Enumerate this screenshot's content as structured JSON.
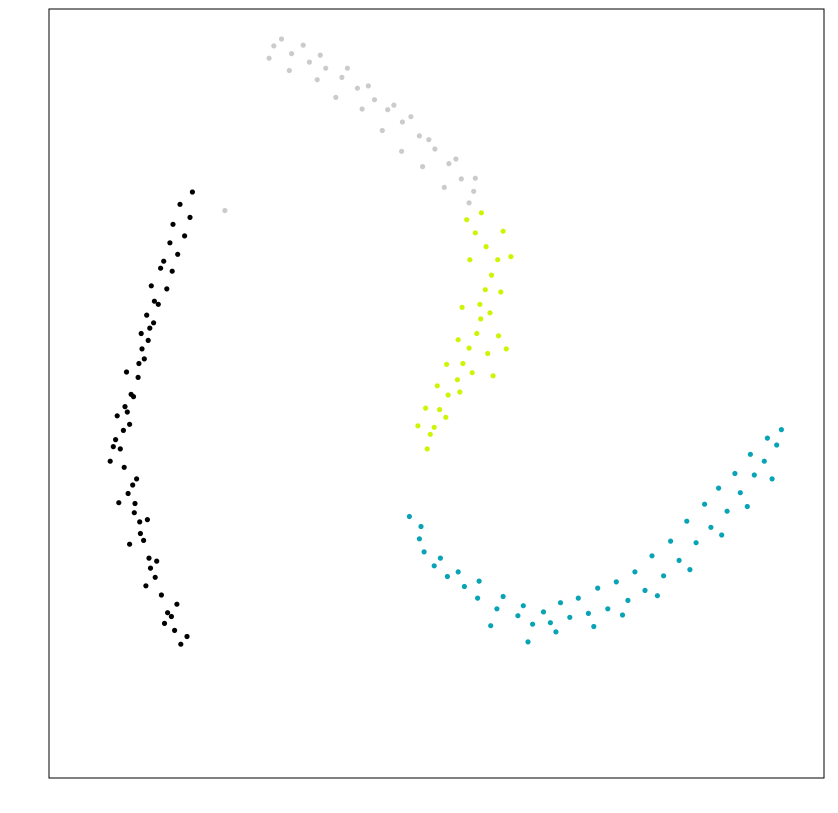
{
  "chart_data": {
    "type": "scatter",
    "title": "",
    "xlabel": "",
    "ylabel": "",
    "xlim": [
      0,
      100
    ],
    "ylim": [
      0,
      100
    ],
    "grid": false,
    "legend": "none",
    "axes_ticks": false,
    "series": [
      {
        "color": "#000000",
        "points": [
          [
            18.2,
            72.9
          ],
          [
            17.5,
            70.5
          ],
          [
            16.6,
            68.1
          ],
          [
            15.9,
            65.9
          ],
          [
            15.2,
            63.6
          ],
          [
            14.1,
            61.6
          ],
          [
            13.5,
            59.2
          ],
          [
            12.8,
            56.9
          ],
          [
            12.3,
            54.5
          ],
          [
            11.5,
            52.1
          ],
          [
            10.6,
            49.9
          ],
          [
            10.1,
            47.6
          ],
          [
            9.6,
            45.2
          ],
          [
            9.2,
            42.8
          ],
          [
            9.7,
            40.4
          ],
          [
            10.8,
            38.1
          ],
          [
            11.1,
            35.7
          ],
          [
            11.7,
            33.3
          ],
          [
            12.2,
            30.9
          ],
          [
            12.9,
            28.6
          ],
          [
            13.7,
            26.1
          ],
          [
            14.5,
            23.8
          ],
          [
            15.3,
            21.5
          ],
          [
            16.2,
            19.2
          ],
          [
            17.0,
            17.4
          ],
          [
            15.6,
            69.6
          ],
          [
            13.2,
            64.0
          ],
          [
            11.9,
            57.8
          ],
          [
            10.0,
            52.8
          ],
          [
            8.8,
            47.1
          ],
          [
            7.9,
            41.2
          ],
          [
            9.0,
            35.8
          ],
          [
            10.4,
            30.4
          ],
          [
            12.5,
            25.0
          ],
          [
            14.9,
            20.1
          ],
          [
            16.9,
            74.6
          ],
          [
            14.8,
            67.2
          ],
          [
            13.6,
            62.0
          ],
          [
            12.0,
            55.8
          ],
          [
            10.9,
            49.6
          ],
          [
            8.6,
            44.0
          ],
          [
            11.3,
            38.9
          ],
          [
            12.7,
            33.6
          ],
          [
            13.9,
            28.2
          ],
          [
            16.5,
            22.6
          ],
          [
            17.8,
            18.4
          ],
          [
            16.0,
            72.0
          ],
          [
            14.4,
            66.3
          ],
          [
            12.6,
            60.2
          ],
          [
            11.6,
            53.9
          ],
          [
            9.8,
            48.3
          ],
          [
            8.3,
            43.1
          ],
          [
            10.2,
            37.0
          ],
          [
            11.8,
            31.8
          ],
          [
            13.1,
            27.3
          ],
          [
            15.8,
            21.0
          ],
          [
            18.5,
            76.2
          ],
          [
            13.0,
            58.5
          ],
          [
            10.4,
            46.0
          ],
          [
            11.0,
            34.5
          ]
        ]
      },
      {
        "color": "#cbcbcb",
        "points": [
          [
            29.0,
            95.2
          ],
          [
            31.3,
            94.2
          ],
          [
            33.6,
            93.1
          ],
          [
            35.7,
            92.3
          ],
          [
            37.8,
            91.1
          ],
          [
            39.8,
            89.7
          ],
          [
            42.0,
            88.2
          ],
          [
            43.7,
            86.9
          ],
          [
            45.6,
            85.3
          ],
          [
            47.8,
            83.5
          ],
          [
            49.8,
            81.8
          ],
          [
            51.6,
            79.9
          ],
          [
            53.2,
            77.9
          ],
          [
            54.8,
            76.3
          ],
          [
            30.0,
            96.1
          ],
          [
            32.8,
            95.3
          ],
          [
            35.0,
            94.0
          ],
          [
            38.5,
            92.3
          ],
          [
            41.2,
            90.0
          ],
          [
            44.5,
            87.5
          ],
          [
            46.7,
            86.0
          ],
          [
            49.0,
            83.0
          ],
          [
            52.5,
            80.5
          ],
          [
            55.0,
            78.0
          ],
          [
            28.4,
            93.6
          ],
          [
            31.0,
            92.0
          ],
          [
            34.6,
            90.8
          ],
          [
            37.0,
            88.5
          ],
          [
            40.4,
            87.0
          ],
          [
            43.0,
            84.2
          ],
          [
            45.5,
            81.5
          ],
          [
            48.2,
            79.5
          ],
          [
            51.0,
            76.8
          ],
          [
            54.2,
            74.8
          ],
          [
            22.7,
            73.8
          ]
        ]
      },
      {
        "color": "#cdf503",
        "points": [
          [
            53.9,
            72.6
          ],
          [
            55.0,
            70.9
          ],
          [
            56.4,
            69.1
          ],
          [
            57.9,
            67.4
          ],
          [
            57.1,
            65.4
          ],
          [
            56.3,
            63.5
          ],
          [
            55.6,
            61.6
          ],
          [
            55.7,
            59.7
          ],
          [
            55.2,
            57.8
          ],
          [
            54.2,
            55.9
          ],
          [
            53.4,
            53.9
          ],
          [
            52.7,
            51.8
          ],
          [
            51.5,
            49.8
          ],
          [
            50.4,
            47.9
          ],
          [
            49.7,
            45.6
          ],
          [
            55.8,
            73.5
          ],
          [
            58.6,
            71.1
          ],
          [
            59.6,
            67.8
          ],
          [
            58.3,
            63.2
          ],
          [
            56.9,
            60.5
          ],
          [
            58.0,
            57.5
          ],
          [
            56.6,
            55.2
          ],
          [
            54.6,
            52.7
          ],
          [
            53.0,
            50.2
          ],
          [
            51.2,
            46.9
          ],
          [
            49.2,
            44.7
          ],
          [
            48.8,
            42.8
          ],
          [
            54.3,
            67.4
          ],
          [
            53.3,
            61.2
          ],
          [
            52.8,
            57.0
          ],
          [
            51.3,
            53.8
          ],
          [
            50.1,
            51.0
          ],
          [
            48.6,
            48.1
          ],
          [
            47.6,
            45.8
          ],
          [
            57.3,
            52.3
          ],
          [
            59.0,
            55.8
          ]
        ]
      },
      {
        "color": "#08a3b5",
        "points": [
          [
            47.8,
            31.1
          ],
          [
            48.4,
            29.4
          ],
          [
            49.7,
            27.6
          ],
          [
            51.4,
            26.2
          ],
          [
            53.6,
            24.9
          ],
          [
            55.3,
            23.4
          ],
          [
            57.8,
            22.0
          ],
          [
            60.5,
            21.1
          ],
          [
            62.4,
            20.0
          ],
          [
            64.7,
            20.2
          ],
          [
            67.2,
            20.9
          ],
          [
            69.6,
            21.4
          ],
          [
            72.1,
            22.0
          ],
          [
            74.7,
            23.1
          ],
          [
            76.9,
            24.4
          ],
          [
            79.3,
            26.3
          ],
          [
            81.3,
            28.3
          ],
          [
            83.5,
            30.6
          ],
          [
            85.4,
            32.6
          ],
          [
            87.5,
            34.7
          ],
          [
            89.2,
            37.1
          ],
          [
            91.0,
            39.4
          ],
          [
            92.3,
            41.2
          ],
          [
            93.9,
            43.3
          ],
          [
            46.5,
            34.0
          ],
          [
            48.0,
            32.7
          ],
          [
            50.5,
            28.6
          ],
          [
            52.8,
            26.8
          ],
          [
            55.5,
            25.6
          ],
          [
            58.6,
            23.6
          ],
          [
            61.2,
            22.4
          ],
          [
            63.8,
            21.6
          ],
          [
            66.0,
            22.8
          ],
          [
            68.3,
            23.4
          ],
          [
            70.8,
            24.7
          ],
          [
            73.2,
            25.5
          ],
          [
            75.6,
            26.8
          ],
          [
            77.8,
            28.9
          ],
          [
            80.2,
            30.8
          ],
          [
            82.3,
            33.4
          ],
          [
            84.6,
            35.6
          ],
          [
            86.4,
            37.7
          ],
          [
            88.5,
            39.6
          ],
          [
            90.5,
            42.1
          ],
          [
            92.7,
            44.2
          ],
          [
            94.5,
            45.3
          ],
          [
            57.0,
            19.8
          ],
          [
            61.8,
            17.7
          ],
          [
            65.4,
            19.0
          ],
          [
            70.3,
            19.7
          ],
          [
            74.0,
            21.2
          ],
          [
            78.5,
            23.7
          ],
          [
            82.7,
            27.1
          ],
          [
            86.8,
            31.6
          ],
          [
            90.1,
            35.3
          ],
          [
            93.3,
            38.9
          ]
        ]
      }
    ]
  }
}
